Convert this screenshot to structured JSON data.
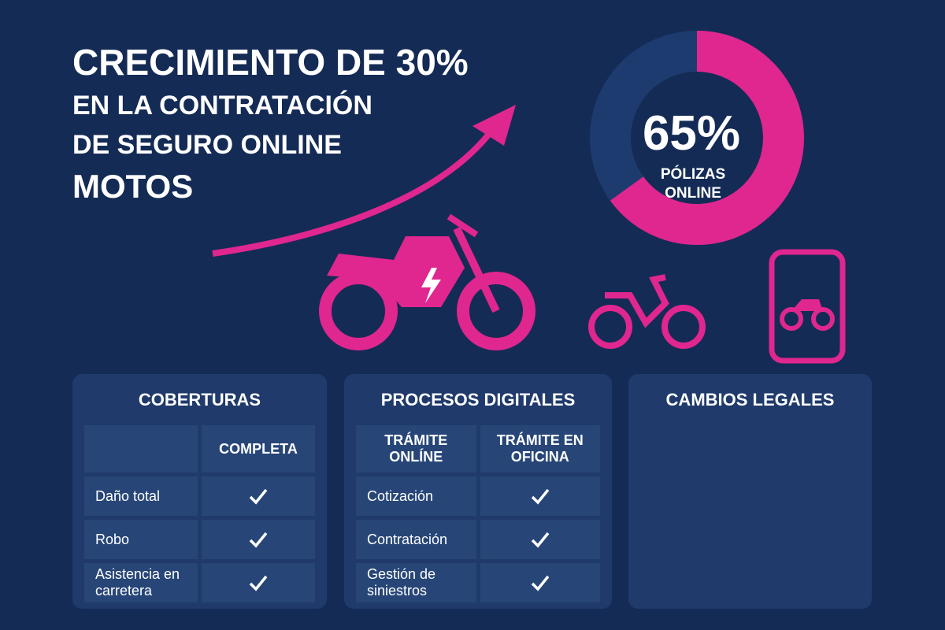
{
  "header": {
    "lines": [
      "CRECIMIENTO DE 30%",
      "EN LA CONTRATACIÓN",
      "DE SEGURO ONLINE",
      "MOTOS"
    ]
  },
  "donut": {
    "percent": {
      "value": 65,
      "label": "65%"
    },
    "caption": [
      "PÓLIZAS",
      "ONLINE"
    ]
  },
  "panels": [
    {
      "title": "COBERTURAS",
      "columns": [
        "COMPLETA"
      ],
      "rows": [
        "Daño total",
        "Robo",
        "Asistencia en carretera"
      ]
    },
    {
      "title": "PROCESOS DIGITALES",
      "columns": [
        "TRÁMITE ONLÍNE",
        "TRÁMITE EN OFICINA"
      ],
      "rows": [
        "Cotización",
        "Contratación",
        "Gestión de siniestros"
      ]
    },
    {
      "title": "CAMBIOS LEGALES"
    }
  ]
}
